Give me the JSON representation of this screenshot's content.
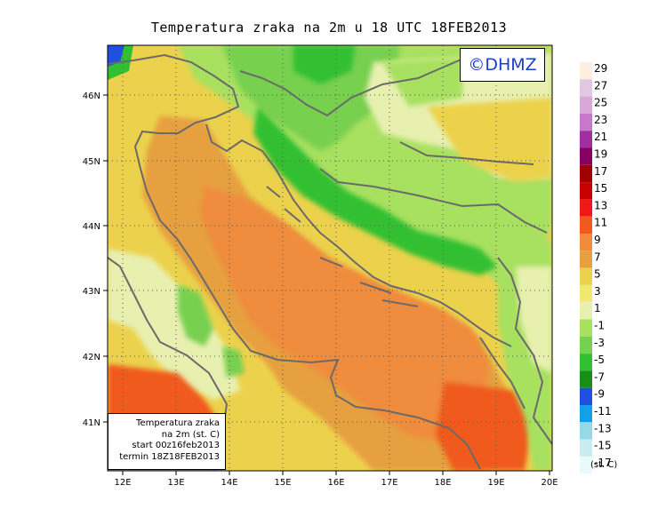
{
  "title": "Temperatura zraka na 2m u 18 UTC 18FEB2013",
  "logo_text": "©DHMZ",
  "info_box": {
    "line1": "Temperatura zraka",
    "line2": "na 2m (st. C)",
    "line3": "start 00z16feb2013",
    "line4": "termin 18Z18FEB2013"
  },
  "axes": {
    "lon_labels": [
      "12E",
      "13E",
      "14E",
      "15E",
      "16E",
      "17E",
      "18E",
      "19E",
      "20E"
    ],
    "lat_labels": [
      "46N",
      "45N",
      "44N",
      "43N",
      "42N",
      "41N"
    ],
    "lon_range": [
      11.9,
      20.0
    ],
    "lat_range": [
      40.2,
      46.8
    ]
  },
  "legend": {
    "units": "(st. C)",
    "labels": [
      "29",
      "27",
      "25",
      "23",
      "21",
      "19",
      "17",
      "15",
      "13",
      "11",
      "9",
      "7",
      "5",
      "3",
      "1",
      "-1",
      "-3",
      "-5",
      "-7",
      "-9",
      "-11",
      "-13",
      "-15",
      "-17"
    ],
    "colors": [
      "#fdeee0",
      "#e0c8e0",
      "#d8a8d8",
      "#c878c8",
      "#a030a0",
      "#880060",
      "#a00000",
      "#c80000",
      "#f01818",
      "#f05a1e",
      "#f08c3c",
      "#e6a040",
      "#ecd24c",
      "#f0e870",
      "#e8f0b0",
      "#a8e060",
      "#78d050",
      "#32c032",
      "#1a8c1a",
      "#2050e0",
      "#14a0e8",
      "#96d8e8",
      "#c8ecf0",
      "#e8fafa"
    ]
  }
}
